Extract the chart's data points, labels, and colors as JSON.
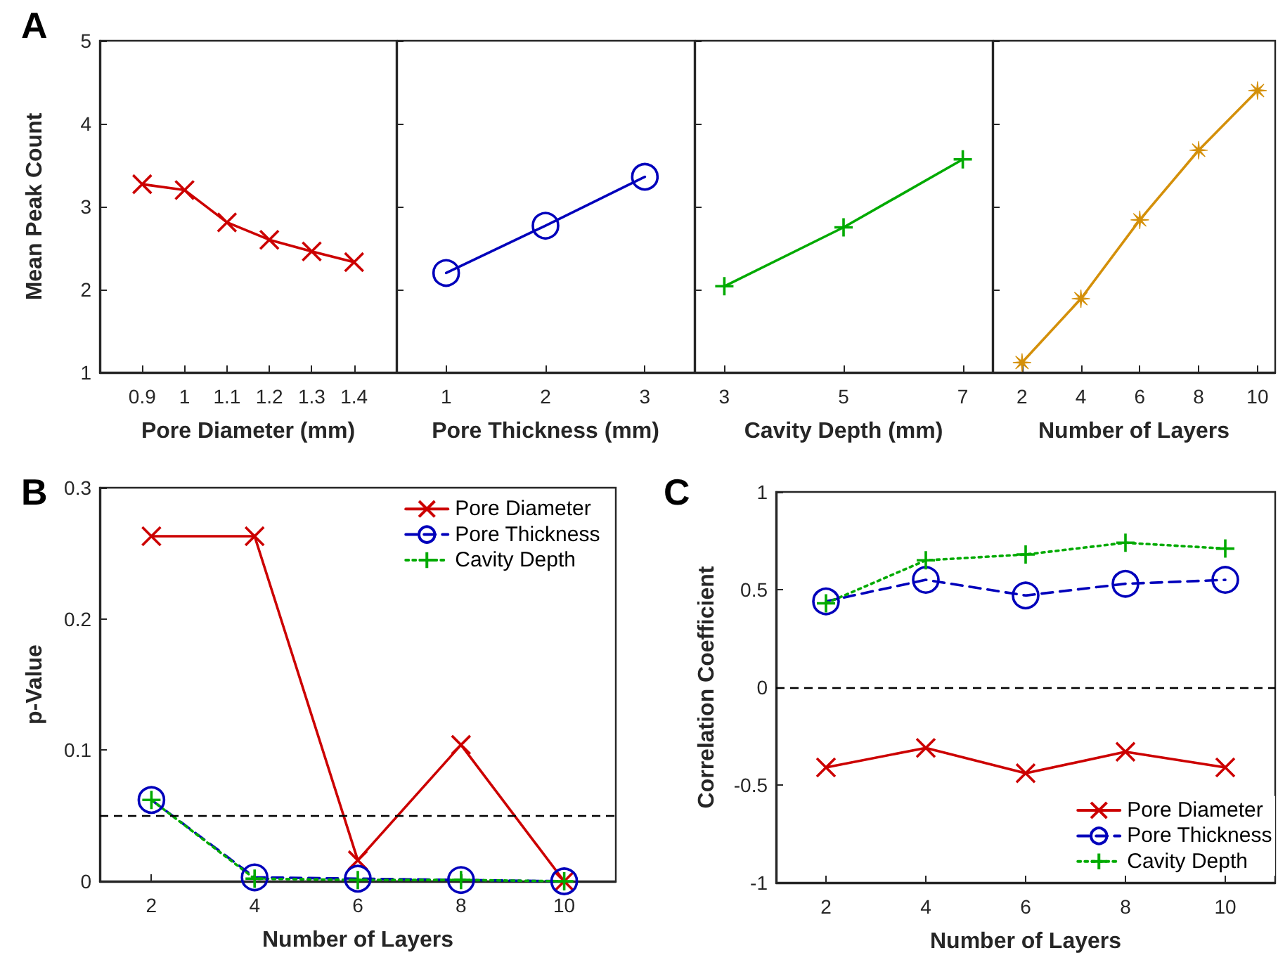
{
  "chart_data": [
    {
      "type": "line",
      "title": "A",
      "xlabel": "Pore Diameter (mm)",
      "ylabel": "Mean Peak Count",
      "x": [
        0.9,
        1,
        1.1,
        1.2,
        1.3,
        1.4
      ],
      "xlim": [
        0.8,
        1.5
      ],
      "xticks": [
        0.9,
        1,
        1.1,
        1.2,
        1.3,
        1.4
      ],
      "ylim": [
        1,
        5
      ],
      "yticks": [
        1,
        2,
        3,
        4,
        5
      ],
      "marker": "cross",
      "series": [
        {
          "color": "#cc0000",
          "values": [
            3.27,
            3.2,
            2.81,
            2.6,
            2.46,
            2.33
          ]
        }
      ]
    },
    {
      "type": "line",
      "xlabel": "Pore Thickness (mm)",
      "x": [
        1,
        2,
        3
      ],
      "xlim": [
        0.5,
        3.5
      ],
      "xticks": [
        1,
        2,
        3
      ],
      "ylim": [
        1,
        5
      ],
      "yticks": [
        1,
        2,
        3,
        4,
        5
      ],
      "tick_labels": "x",
      "marker": "circle",
      "series": [
        {
          "color": "#0000bb",
          "values": [
            2.2,
            2.77,
            3.36
          ]
        }
      ]
    },
    {
      "type": "line",
      "xlabel": "Cavity Depth (mm)",
      "x": [
        3,
        5,
        7
      ],
      "xlim": [
        2.5,
        7.5
      ],
      "xticks": [
        3,
        5,
        7
      ],
      "ylim": [
        1,
        5
      ],
      "yticks": [
        1,
        2,
        3,
        4,
        5
      ],
      "tick_labels": "x",
      "marker": "plus",
      "series": [
        {
          "color": "#00aa00",
          "values": [
            2.04,
            2.75,
            3.57
          ]
        }
      ]
    },
    {
      "type": "line",
      "xlabel": "Number of Layers",
      "x": [
        2,
        4,
        6,
        8,
        10
      ],
      "xlim": [
        1,
        10.6
      ],
      "xticks": [
        2,
        4,
        6,
        8,
        10
      ],
      "ylim": [
        1,
        5
      ],
      "yticks": [
        1,
        2,
        3,
        4,
        5
      ],
      "tick_labels": "x",
      "marker": "star",
      "series": [
        {
          "color": "#d4900a",
          "values": [
            1.12,
            1.89,
            2.84,
            3.68,
            4.4
          ]
        }
      ]
    },
    {
      "type": "line",
      "title": "B",
      "xlabel": "Number of Layers",
      "ylabel": "p-Value",
      "x": [
        2,
        4,
        6,
        8,
        10
      ],
      "xlim": [
        1,
        11
      ],
      "xticks": [
        2,
        4,
        6,
        8,
        10
      ],
      "ylim": [
        0,
        0.3
      ],
      "yticks": [
        0,
        0.1,
        0.2,
        0.3
      ],
      "legend": "top right",
      "ref_lines": [
        {
          "axis": "y",
          "value": 0.05,
          "color": "#000000",
          "line_style": "dashed"
        }
      ],
      "series": [
        {
          "name": "Pore Diameter",
          "color": "#cc0000",
          "marker": "cross",
          "line_style": "solid",
          "values": [
            0.263,
            0.263,
            0.016,
            0.104,
            0
          ]
        },
        {
          "name": "Pore Thickness",
          "color": "#0000bb",
          "marker": "circle",
          "line_style": "dashed",
          "values": [
            0.062,
            0.003,
            0.002,
            0.001,
            0
          ]
        },
        {
          "name": "Cavity Depth",
          "color": "#00aa00",
          "marker": "plus",
          "line_style": "dotted",
          "values": [
            0.062,
            0.002,
            0.001,
            0.001,
            0
          ]
        }
      ]
    },
    {
      "type": "line",
      "title": "C",
      "xlabel": "Number of Layers",
      "ylabel": "Correlation Coefficient",
      "x": [
        2,
        4,
        6,
        8,
        10
      ],
      "xlim": [
        1,
        11
      ],
      "xticks": [
        2,
        4,
        6,
        8,
        10
      ],
      "ylim": [
        -1,
        1
      ],
      "yticks": [
        -1,
        -0.5,
        0,
        0.5,
        1
      ],
      "legend": "bottom right",
      "ref_lines": [
        {
          "axis": "y",
          "value": 0,
          "color": "#000000",
          "line_style": "dashed"
        }
      ],
      "series": [
        {
          "name": "Pore Diameter",
          "color": "#cc0000",
          "marker": "cross",
          "line_style": "solid",
          "values": [
            -0.41,
            -0.31,
            -0.44,
            -0.33,
            -0.41
          ]
        },
        {
          "name": "Pore Thickness",
          "color": "#0000bb",
          "marker": "circle",
          "line_style": "dashed",
          "values": [
            0.44,
            0.55,
            0.47,
            0.53,
            0.55
          ]
        },
        {
          "name": "Cavity Depth",
          "color": "#00aa00",
          "marker": "plus",
          "line_style": "dotted",
          "values": [
            0.43,
            0.65,
            0.68,
            0.74,
            0.71
          ]
        }
      ]
    }
  ]
}
